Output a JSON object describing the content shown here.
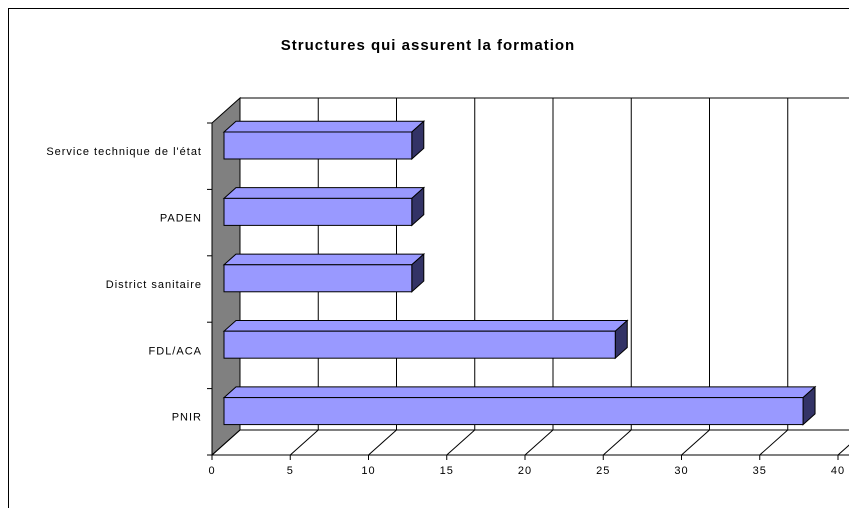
{
  "chart_data": {
    "type": "bar3d",
    "orientation": "horizontal",
    "title": "Structures qui assurent la formation",
    "categories": [
      "Service technique de l'état",
      "PADEN",
      "District sanitaire",
      "FDL/ACA",
      "PNIR"
    ],
    "values": [
      12,
      12,
      12,
      25,
      37
    ],
    "color": "#9999ff",
    "xlim": [
      0,
      40
    ],
    "xticks": [
      0,
      5,
      10,
      15,
      20,
      25,
      30,
      35,
      40
    ],
    "grid": true
  }
}
